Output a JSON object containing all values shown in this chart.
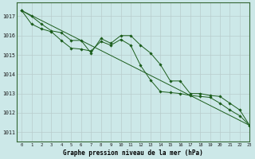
{
  "title": "Graphe pression niveau de la mer (hPa)",
  "bg_color": "#cce8e8",
  "grid_color": "#b8cccc",
  "line_color": "#1a5c1a",
  "xlim": [
    -0.5,
    23
  ],
  "ylim": [
    1010.5,
    1017.7
  ],
  "yticks": [
    1011,
    1012,
    1013,
    1014,
    1015,
    1016,
    1017
  ],
  "xticks": [
    0,
    1,
    2,
    3,
    4,
    5,
    6,
    7,
    8,
    9,
    10,
    11,
    12,
    13,
    14,
    15,
    16,
    17,
    18,
    19,
    20,
    21,
    22,
    23
  ],
  "series1_x": [
    0,
    1,
    2,
    3,
    4,
    5,
    6,
    7,
    8,
    9,
    10,
    11,
    12,
    13,
    14,
    15,
    16,
    17,
    18,
    19,
    20,
    21,
    22,
    23
  ],
  "series1_y": [
    1017.3,
    1017.0,
    1016.6,
    1016.25,
    1016.15,
    1015.75,
    1015.75,
    1015.1,
    1015.85,
    1015.6,
    1016.0,
    1016.0,
    1015.5,
    1015.1,
    1014.5,
    1013.65,
    1013.65,
    1013.0,
    1013.0,
    1012.9,
    1012.85,
    1012.5,
    1012.15,
    1011.35
  ],
  "series2_x": [
    0,
    1,
    2,
    3,
    4,
    5,
    6,
    7,
    8,
    9,
    10,
    11,
    12,
    13,
    14,
    15,
    16,
    17,
    18,
    19,
    20,
    21,
    22,
    23
  ],
  "series2_y": [
    1017.3,
    1016.6,
    1016.35,
    1016.2,
    1015.75,
    1015.35,
    1015.3,
    1015.2,
    1015.7,
    1015.5,
    1015.8,
    1015.5,
    1014.45,
    1013.7,
    1013.1,
    1013.05,
    1013.0,
    1012.9,
    1012.85,
    1012.8,
    1012.5,
    1012.15,
    1011.85,
    1011.35
  ],
  "series3_x": [
    0,
    23
  ],
  "series3_y": [
    1017.3,
    1011.35
  ]
}
